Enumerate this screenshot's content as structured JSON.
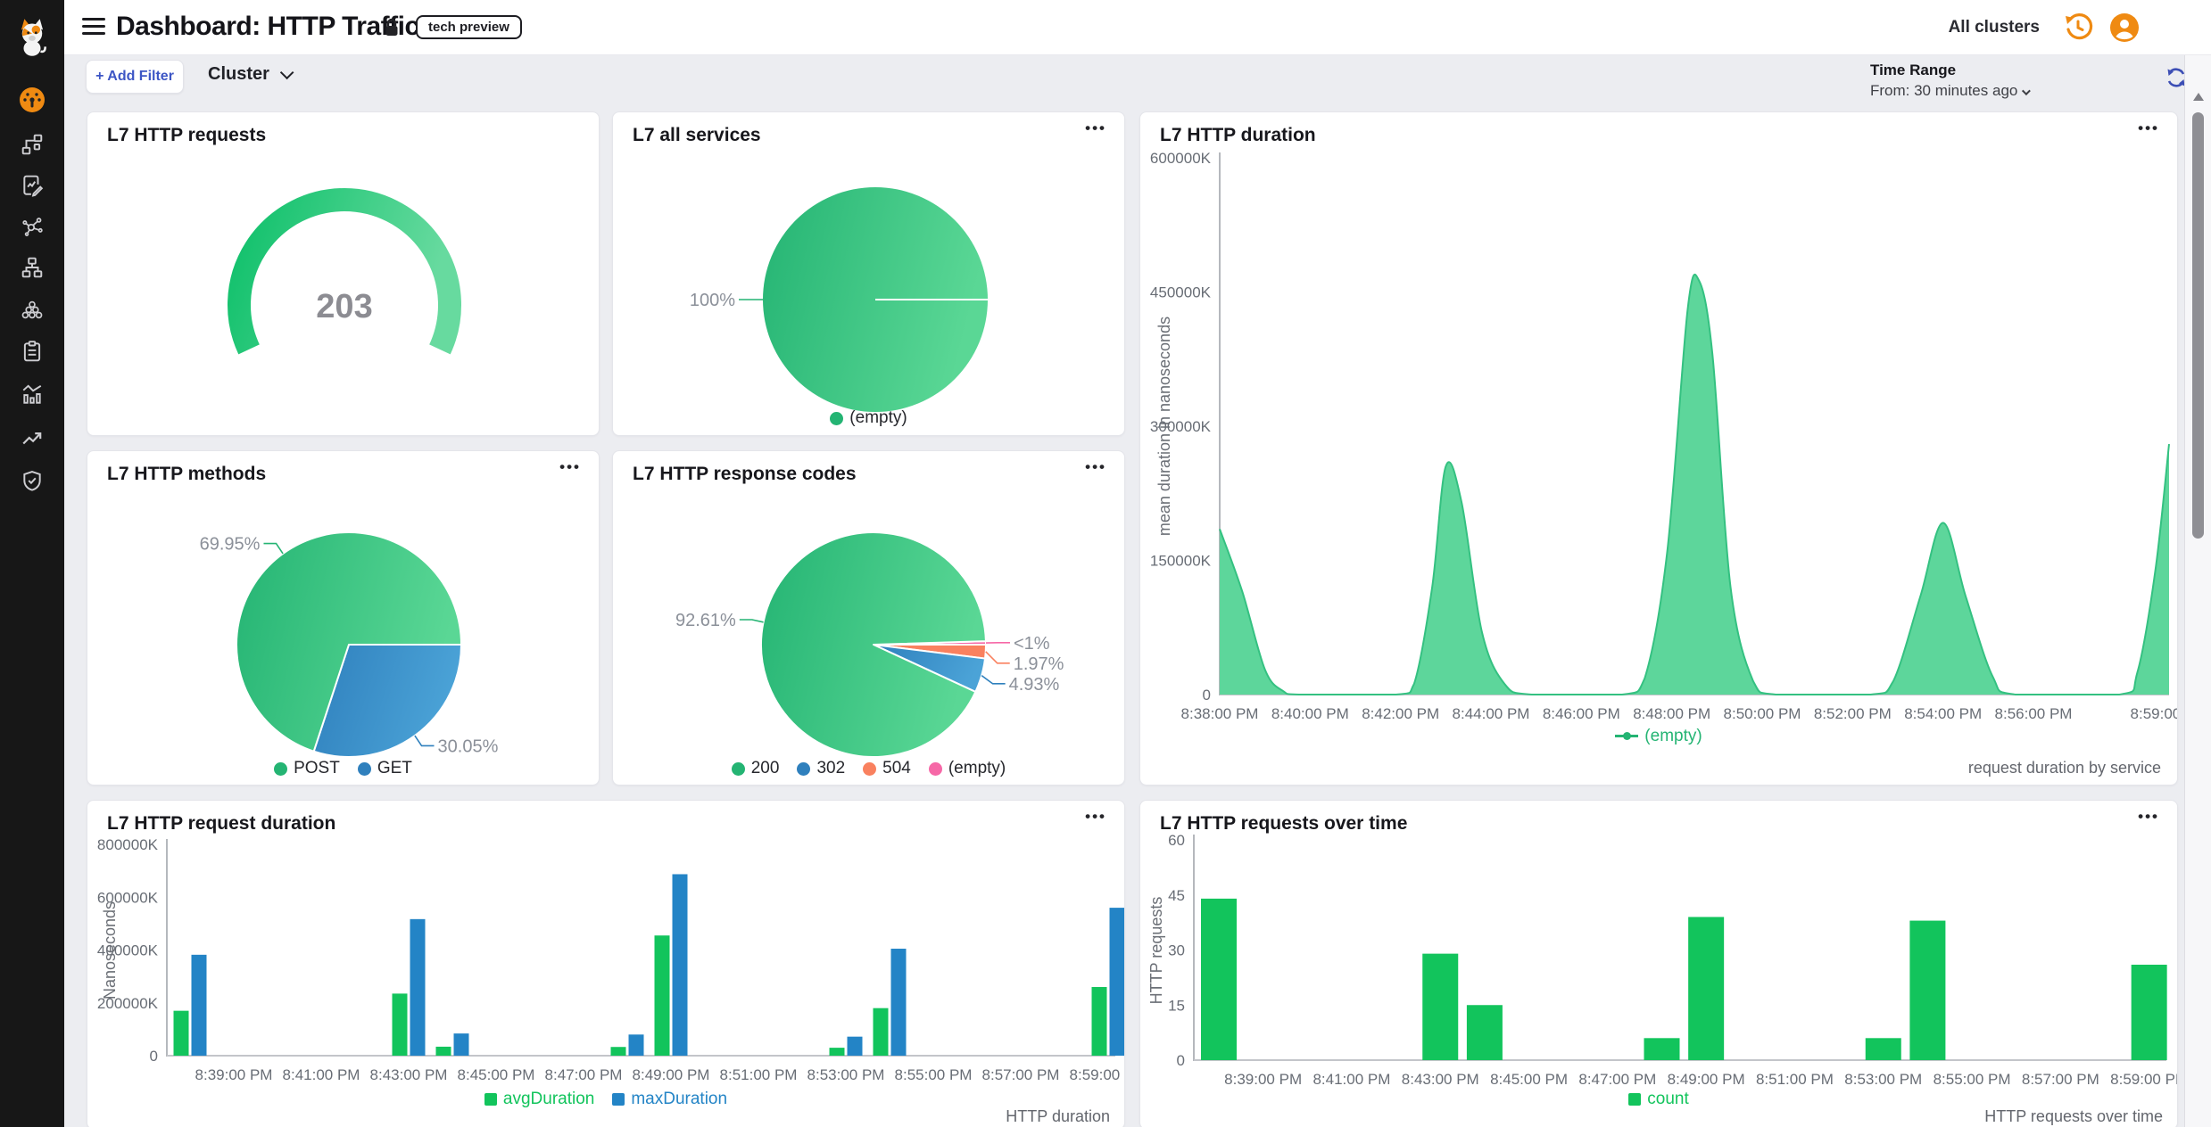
{
  "colors": {
    "green": "#24b473",
    "green_light": "#5ad795",
    "bar_green": "#12c45c",
    "blue": "#2f80bd",
    "blue_light": "#4ba3d7",
    "bar_blue": "#2384c6",
    "salmon": "#f9815f",
    "pink": "#f668a7",
    "orange": "#ef8a12",
    "indigo": "#3c4eb5",
    "link_blue": "#3d56c5"
  },
  "sidebar": {
    "logo": "cat-logo",
    "items": [
      {
        "icon": "dashboard-gauge-icon",
        "active": true
      },
      {
        "icon": "topology-icon",
        "active": false
      },
      {
        "icon": "policy-edit-icon",
        "active": false
      },
      {
        "icon": "service-map-icon",
        "active": false
      },
      {
        "icon": "network-hierarchy-icon",
        "active": false
      },
      {
        "icon": "cluster-nodes-icon",
        "active": false
      },
      {
        "icon": "clipboard-icon",
        "active": false
      },
      {
        "icon": "metrics-bars-icon",
        "active": false
      },
      {
        "icon": "trend-arrow-icon",
        "active": false
      },
      {
        "icon": "security-shield-icon",
        "active": false
      }
    ]
  },
  "header": {
    "title": "Dashboard: HTTP Traffic",
    "badge": "tech preview",
    "clusters_label": "All clusters"
  },
  "filter_bar": {
    "add_filter_label": "+ Add Filter",
    "cluster_label": "Cluster",
    "time_range_label": "Time Range",
    "time_range_value": "From: 30 minutes ago"
  },
  "panels": {
    "requests": {
      "title": "L7 HTTP requests"
    },
    "all_services": {
      "title": "L7 all services"
    },
    "duration": {
      "title": "L7 HTTP duration",
      "footer": "request duration by service"
    },
    "methods": {
      "title": "L7 HTTP methods"
    },
    "response_codes": {
      "title": "L7 HTTP response codes"
    },
    "request_duration": {
      "title": "L7 HTTP request duration",
      "footer": "HTTP duration"
    },
    "requests_over_time": {
      "title": "L7 HTTP requests over time",
      "footer": "HTTP requests over time"
    }
  },
  "chart_data": [
    {
      "id": "requests",
      "type": "gauge",
      "title": "L7 HTTP requests",
      "value": "203",
      "color": "green"
    },
    {
      "id": "all_services",
      "type": "pie",
      "title": "L7 all services",
      "start": 0,
      "slices": [
        {
          "label": "(empty)",
          "pct": 100,
          "display": "100%",
          "color": "green"
        }
      ],
      "legend": [
        {
          "label": "(empty)",
          "color": "green",
          "marker": "dot"
        }
      ]
    },
    {
      "id": "duration",
      "type": "area",
      "title": "L7 HTTP duration",
      "series": "(empty)",
      "color": "green",
      "ylabel": "mean duration in nanoseconds",
      "unit": "K nanoseconds",
      "yticks": [
        {
          "v": 0,
          "label": "0"
        },
        {
          "v": 150000,
          "label": "150000K"
        },
        {
          "v": 300000,
          "label": "300000K"
        },
        {
          "v": 450000,
          "label": "450000K"
        },
        {
          "v": 600000,
          "label": "600000K"
        }
      ],
      "xticks": [
        {
          "t": 0,
          "label": "8:38:00 PM"
        },
        {
          "t": 2,
          "label": "8:40:00 PM"
        },
        {
          "t": 4,
          "label": "8:42:00 PM"
        },
        {
          "t": 6,
          "label": "8:44:00 PM"
        },
        {
          "t": 8,
          "label": "8:46:00 PM"
        },
        {
          "t": 10,
          "label": "8:48:00 PM"
        },
        {
          "t": 12,
          "label": "8:50:00 PM"
        },
        {
          "t": 14,
          "label": "8:52:00 PM"
        },
        {
          "t": 16,
          "label": "8:54:00 PM"
        },
        {
          "t": 18,
          "label": "8:56:00 PM"
        },
        {
          "t": 21,
          "label": "8:59:00 PM"
        }
      ],
      "points": [
        [
          0,
          185000
        ],
        [
          0.5,
          115000
        ],
        [
          1,
          28000
        ],
        [
          1.4,
          4000
        ],
        [
          1.8,
          0
        ],
        [
          3.9,
          0
        ],
        [
          4.3,
          12000
        ],
        [
          4.7,
          120000
        ],
        [
          5.0,
          255000
        ],
        [
          5.35,
          215000
        ],
        [
          5.8,
          70000
        ],
        [
          6.3,
          12000
        ],
        [
          6.9,
          0
        ],
        [
          8.9,
          0
        ],
        [
          9.4,
          18000
        ],
        [
          9.9,
          160000
        ],
        [
          10.35,
          430000
        ],
        [
          10.6,
          463000
        ],
        [
          10.9,
          380000
        ],
        [
          11.3,
          120000
        ],
        [
          11.8,
          15000
        ],
        [
          12.3,
          0
        ],
        [
          14.4,
          0
        ],
        [
          14.9,
          15000
        ],
        [
          15.5,
          110000
        ],
        [
          16,
          192000
        ],
        [
          16.5,
          110000
        ],
        [
          17.1,
          20000
        ],
        [
          17.6,
          0
        ],
        [
          19.9,
          0
        ],
        [
          20.3,
          25000
        ],
        [
          20.7,
          140000
        ],
        [
          21,
          280000
        ]
      ],
      "legend": [
        {
          "label": "(empty)",
          "color": "green",
          "marker": "line",
          "colored_text": true
        }
      ],
      "footer": "request duration by service"
    },
    {
      "id": "methods",
      "type": "pie",
      "title": "L7 HTTP methods",
      "start": 0,
      "slices": [
        {
          "label": "GET",
          "pct": 30.05,
          "display": "30.05%",
          "color": "blue"
        },
        {
          "label": "POST",
          "pct": 69.95,
          "display": "69.95%",
          "color": "green"
        }
      ],
      "legend": [
        {
          "label": "POST",
          "color": "green",
          "marker": "dot"
        },
        {
          "label": "GET",
          "color": "blue",
          "marker": "dot"
        }
      ]
    },
    {
      "id": "response_codes",
      "type": "pie",
      "title": "L7 HTTP response codes",
      "start": 1.76,
      "slices": [
        {
          "label": "(empty)",
          "pct": 0.49,
          "display": "<1%",
          "color": "pink"
        },
        {
          "label": "504",
          "pct": 1.97,
          "display": "1.97%",
          "color": "salmon"
        },
        {
          "label": "302",
          "pct": 4.93,
          "display": "4.93%",
          "color": "blue"
        },
        {
          "label": "200",
          "pct": 92.61,
          "display": "92.61%",
          "color": "green"
        }
      ],
      "legend": [
        {
          "label": "200",
          "color": "green",
          "marker": "dot"
        },
        {
          "label": "302",
          "color": "blue",
          "marker": "dot"
        },
        {
          "label": "504",
          "color": "salmon",
          "marker": "dot"
        },
        {
          "label": "(empty)",
          "color": "pink",
          "marker": "dot"
        }
      ]
    },
    {
      "id": "request_duration",
      "type": "bar",
      "title": "L7 HTTP request duration",
      "ylabel": "Nanoseconds",
      "unit": "K nanoseconds",
      "categories": [
        "8:38 PM",
        "8:43 PM",
        "8:44 PM",
        "8:48 PM",
        "8:49 PM",
        "8:53 PM",
        "8:54 PM",
        "8:59 PM"
      ],
      "group_t": [
        0,
        5,
        6,
        10,
        11,
        15,
        16,
        21
      ],
      "series": [
        {
          "name": "avgDuration",
          "color": "bar_green",
          "values": [
            170000,
            235000,
            34000,
            33000,
            455000,
            30000,
            180000,
            260000
          ]
        },
        {
          "name": "maxDuration",
          "color": "bar_blue",
          "values": [
            382000,
            517000,
            84000,
            80000,
            687000,
            72000,
            405000,
            560000
          ]
        }
      ],
      "yticks": [
        {
          "v": 0,
          "label": "0"
        },
        {
          "v": 200000,
          "label": "200000K"
        },
        {
          "v": 400000,
          "label": "400000K"
        },
        {
          "v": 600000,
          "label": "600000K"
        },
        {
          "v": 800000,
          "label": "800000K"
        }
      ],
      "xticks": [
        {
          "t": 1,
          "label": "8:39:00 PM"
        },
        {
          "t": 3,
          "label": "8:41:00 PM"
        },
        {
          "t": 5,
          "label": "8:43:00 PM"
        },
        {
          "t": 7,
          "label": "8:45:00 PM"
        },
        {
          "t": 9,
          "label": "8:47:00 PM"
        },
        {
          "t": 11,
          "label": "8:49:00 PM"
        },
        {
          "t": 13,
          "label": "8:51:00 PM"
        },
        {
          "t": 15,
          "label": "8:53:00 PM"
        },
        {
          "t": 17,
          "label": "8:55:00 PM"
        },
        {
          "t": 19,
          "label": "8:57:00 PM"
        },
        {
          "t": 21,
          "label": "8:59:00 PM"
        }
      ],
      "legend": [
        {
          "label": "avgDuration",
          "color": "bar_green",
          "marker": "square",
          "colored_text": true
        },
        {
          "label": "maxDuration",
          "color": "bar_blue",
          "marker": "square",
          "colored_text": true
        }
      ],
      "footer": "HTTP duration"
    },
    {
      "id": "requests_over_time",
      "type": "bar",
      "title": "L7 HTTP requests over time",
      "ylabel": "HTTP requests",
      "categories": [
        "8:38 PM",
        "8:43 PM",
        "8:44 PM",
        "8:48 PM",
        "8:49 PM",
        "8:53 PM",
        "8:54 PM",
        "8:59 PM"
      ],
      "group_t": [
        0,
        5,
        6,
        10,
        11,
        15,
        16,
        21
      ],
      "series": [
        {
          "name": "count",
          "color": "bar_green",
          "values": [
            44,
            29,
            15,
            6,
            39,
            6,
            38,
            26
          ]
        }
      ],
      "yticks": [
        {
          "v": 0,
          "label": "0"
        },
        {
          "v": 15,
          "label": "15"
        },
        {
          "v": 30,
          "label": "30"
        },
        {
          "v": 45,
          "label": "45"
        },
        {
          "v": 60,
          "label": "60"
        }
      ],
      "xticks": [
        {
          "t": 1,
          "label": "8:39:00 PM"
        },
        {
          "t": 3,
          "label": "8:41:00 PM"
        },
        {
          "t": 5,
          "label": "8:43:00 PM"
        },
        {
          "t": 7,
          "label": "8:45:00 PM"
        },
        {
          "t": 9,
          "label": "8:47:00 PM"
        },
        {
          "t": 11,
          "label": "8:49:00 PM"
        },
        {
          "t": 13,
          "label": "8:51:00 PM"
        },
        {
          "t": 15,
          "label": "8:53:00 PM"
        },
        {
          "t": 17,
          "label": "8:55:00 PM"
        },
        {
          "t": 19,
          "label": "8:57:00 PM"
        },
        {
          "t": 21,
          "label": "8:59:00 PM"
        }
      ],
      "legend": [
        {
          "label": "count",
          "color": "bar_green",
          "marker": "square",
          "colored_text": true
        }
      ],
      "footer": "HTTP requests over time"
    }
  ]
}
